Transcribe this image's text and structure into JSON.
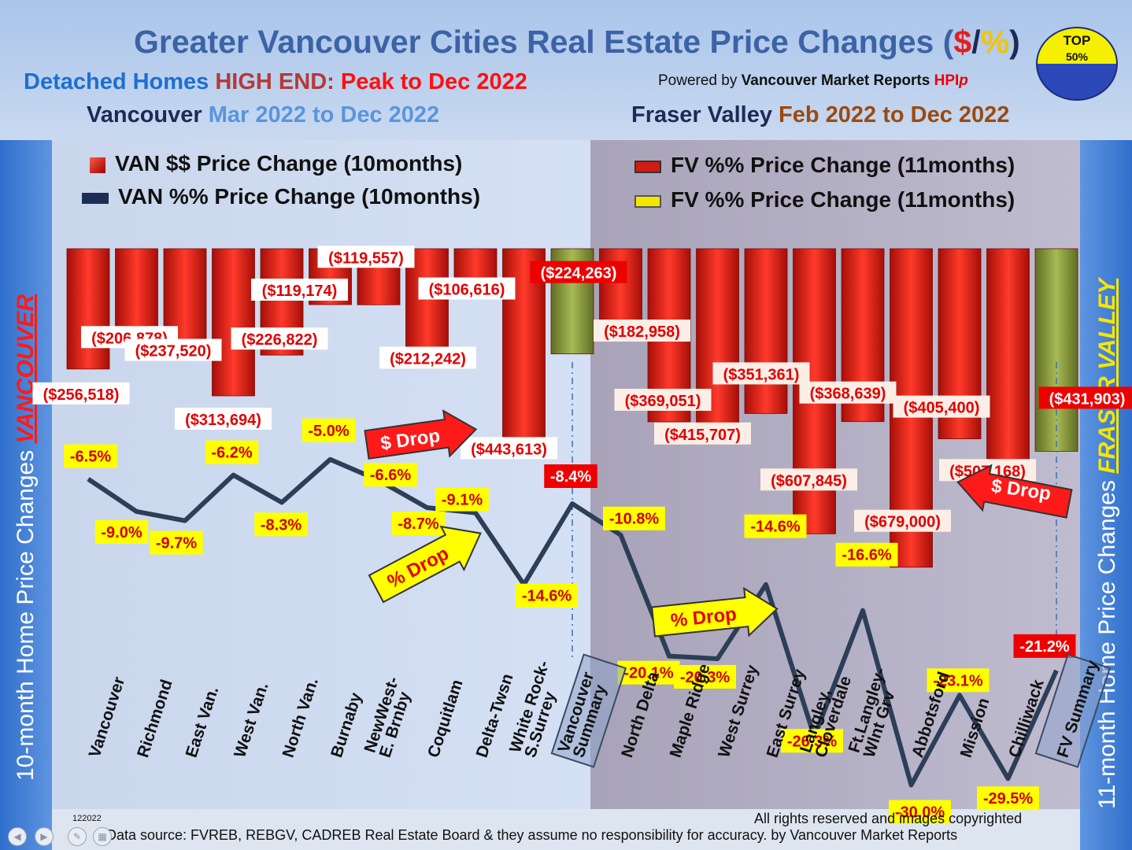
{
  "header": {
    "title_main": "Greater Vancouver Cities Real Estate Price Changes (",
    "title_dollar": "$",
    "title_slash": "/",
    "title_pct": "%",
    "title_close": ")",
    "sub1_a": "Detached Homes ",
    "sub1_b": "HIGH END: ",
    "sub1_c": "Peak to Dec 2022",
    "powered_a": "Powered by ",
    "powered_b": "Vancouver Market Reports ",
    "powered_c": "HPI",
    "powered_d": "p",
    "sub2_a": "Vancouver ",
    "sub2_b": "Mar 2022 to Dec 2022",
    "sub3_a": "Fraser Valley ",
    "sub3_b": "Feb 2022 to Dec 2022",
    "badge_top": "TOP",
    "badge_bottom": "50%"
  },
  "side": {
    "left_a": "10-month Home Price Changes ",
    "left_b": "VANCOUVER",
    "right_a": "11-month Home Price  Changes  ",
    "right_b": "FRASER VALLEY"
  },
  "legend": {
    "van_dollar": "VAN $$ Price Change (10months)",
    "van_pct": "VAN %% Price Change (10months)",
    "fv_dollar": "FV %% Price Change (11months)",
    "fv_pct": "FV %% Price Change (11months)"
  },
  "annotations": {
    "dollar_drop_left": "$ Drop",
    "pct_drop_left": "% Drop",
    "pct_drop_right": "% Drop",
    "dollar_drop_right": "$ Drop"
  },
  "footer": {
    "rights": "All rights reserved and  images copyrighted",
    "source": "Data source: FVREB, REBGV, CADREB Real Estate Board & they assume no responsibility for accuracy. by Vancouver Market Reports",
    "code": "122022"
  },
  "colors": {
    "bar_red": "#d41c12",
    "bar_summary": "#8a9a3a",
    "line": "#2c3e58",
    "label_yellow": "#ffff00",
    "label_red_text": "#e00000"
  },
  "chart_data": {
    "type": "bar",
    "categories": [
      "Vancouver",
      "Richmond",
      "East Van.",
      "West Van.",
      "North Van.",
      "Burnaby",
      "NewWest-\nE. Brnby",
      "Coquitlam",
      "Delta-Twsn",
      "White Rock-\nS.Surrey",
      "Vancouver\nSummary",
      "North Delta",
      "Maple Ridge",
      "West Surrey",
      "East Surrey",
      "Langley,\nCloverdale",
      "Ft.Langley-\nWlnt Grv",
      "Abbotsford",
      "Mission",
      "Chilliwack",
      "FV Summary"
    ],
    "series": [
      {
        "name": "VAN $$ Price Change (10months)",
        "values": [
          -256518,
          -206878,
          -237520,
          -313694,
          -226822,
          -119174,
          -119557,
          -212242,
          -106616,
          -443613,
          -224263,
          -182958,
          -369051,
          -415707,
          -351361,
          -607845,
          -368639,
          -679000,
          -405400,
          -507168,
          -431903
        ]
      },
      {
        "name": "VAN %% Price Change (10months)",
        "values": [
          -6.5,
          -9.0,
          -9.7,
          -6.2,
          -8.3,
          -5.0,
          -6.6,
          -8.7,
          -9.1,
          -14.6,
          -8.4,
          -10.8,
          -20.1,
          -20.3,
          -14.6,
          -26.3,
          -16.6,
          -30.0,
          -23.1,
          -29.5,
          -21.2
        ]
      }
    ],
    "dollar_labels": [
      "($256,518)",
      "($206,878)",
      "($237,520)",
      "($313,694)",
      "($226,822)",
      "($119,174)",
      "($119,557)",
      "($212,242)",
      "($106,616)",
      "($443,613)",
      "($224,263)",
      "($182,958)",
      "($369,051)",
      "($415,707)",
      "($351,361)",
      "($607,845)",
      "($368,639)",
      "($679,000)",
      "($405,400)",
      "($507,168)",
      "($431,903)"
    ],
    "pct_labels": [
      "-6.5%",
      "-9.0%",
      "-9.7%",
      "-6.2%",
      "-8.3%",
      "-5.0%",
      "-6.6%",
      "-8.7%",
      "-9.1%",
      "-14.6%",
      "-8.4%",
      "-10.8%",
      "-20.1%",
      "-20.3%",
      "-14.6%",
      "-26.3%",
      "-16.6%",
      "-30.0%",
      "-23.1%",
      "-29.5%",
      "-21.2%"
    ],
    "summary_indices": [
      10,
      20
    ]
  }
}
